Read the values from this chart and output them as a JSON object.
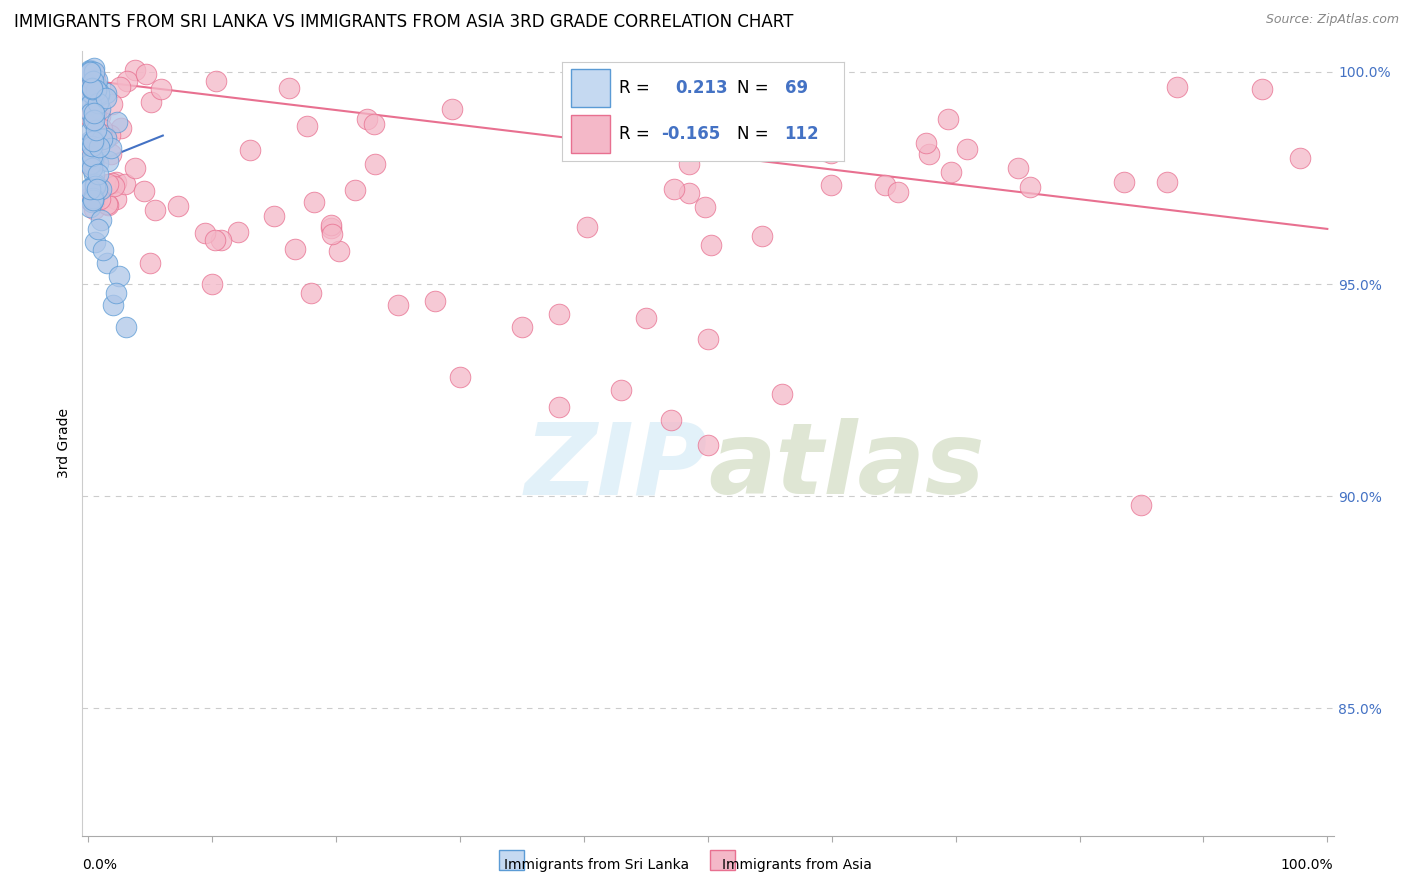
{
  "title": "IMMIGRANTS FROM SRI LANKA VS IMMIGRANTS FROM ASIA 3RD GRADE CORRELATION CHART",
  "source": "Source: ZipAtlas.com",
  "ylabel": "3rd Grade",
  "xlim": [
    0.0,
    1.0
  ],
  "ylim": [
    0.82,
    1.005
  ],
  "yticks": [
    0.85,
    0.9,
    0.95,
    1.0
  ],
  "ytick_labels": [
    "85.0%",
    "90.0%",
    "95.0%",
    "100.0%"
  ],
  "blue_R": 0.213,
  "blue_N": 69,
  "pink_R": -0.165,
  "pink_N": 112,
  "blue_color": "#aec6e8",
  "pink_color": "#f4b8c8",
  "blue_edge_color": "#5b9bd5",
  "pink_edge_color": "#e87090",
  "blue_line_color": "#4472c4",
  "pink_line_color": "#e87090",
  "legend_blue_fill": "#c5d9f1",
  "legend_pink_fill": "#f4b8c8",
  "background_color": "#ffffff",
  "grid_color": "#cccccc",
  "title_fontsize": 12,
  "source_fontsize": 9,
  "axis_label_fontsize": 10,
  "tick_fontsize": 10,
  "legend_fontsize": 12,
  "watermark_color": "#d0e8f5",
  "watermark_alpha": 0.6
}
